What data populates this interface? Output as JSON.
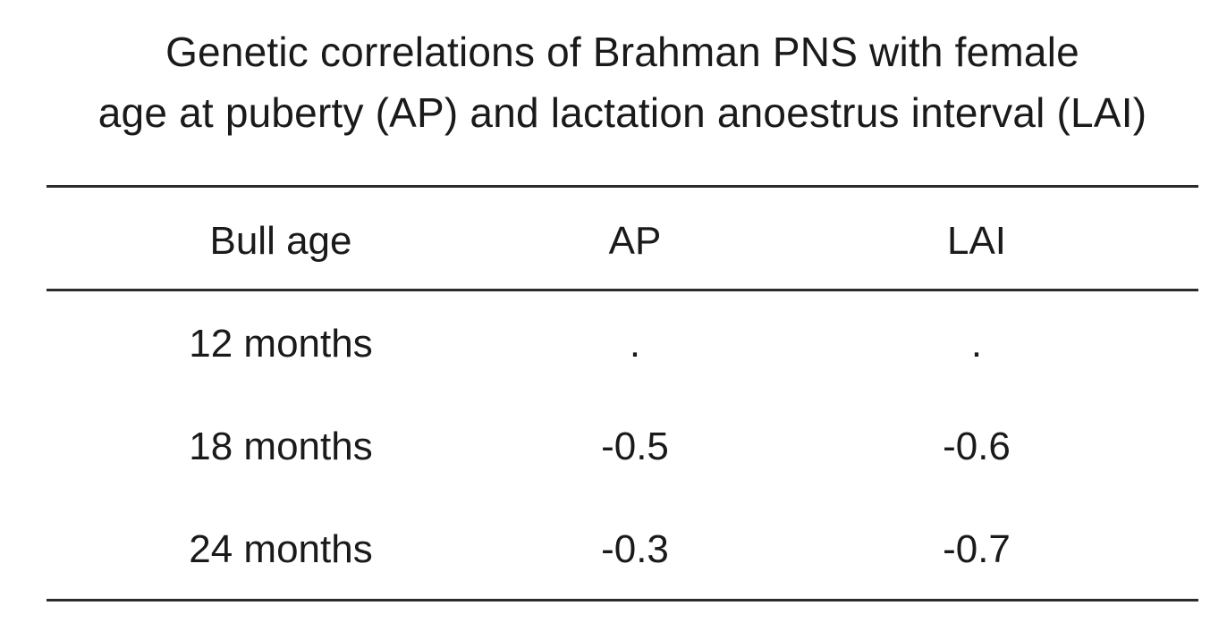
{
  "title": {
    "line1": "Genetic correlations of Brahman PNS with female",
    "line2": "age at puberty (AP) and lactation anoestrus interval (LAI)"
  },
  "table": {
    "headers": [
      "Bull age",
      "AP",
      "LAI"
    ],
    "rows": [
      [
        "12 months",
        ".",
        "."
      ],
      [
        "18 months",
        "-0.5",
        "-0.6"
      ],
      [
        "24 months",
        "-0.3",
        "-0.7"
      ]
    ]
  }
}
